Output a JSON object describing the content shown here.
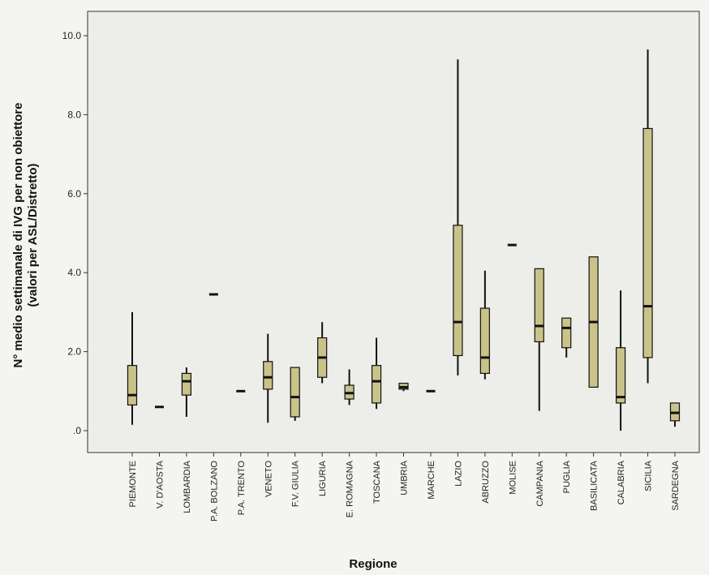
{
  "chart_data": {
    "type": "boxplot",
    "title": "",
    "xlabel": "Regione",
    "ylabel_line1": "N° medio settimanale di IVG per non obiettore",
    "ylabel_line2": "(valori per ASL/Distretto)",
    "ylim": [
      0,
      10
    ],
    "ytick_values": [
      0,
      2,
      4,
      6,
      8,
      10
    ],
    "ytick_labels": [
      ".0",
      "2.0",
      "4.0",
      "6.0",
      "8.0",
      "10.0"
    ],
    "grid": false,
    "legend": "none",
    "box_color": "#c9c38a",
    "categories": [
      "PIEMONTE",
      "V. D'AOSTA",
      "LOMBARDIA",
      "P.A. BOLZANO",
      "P.A. TRENTO",
      "VENETO",
      "F.V. GIULIA",
      "LIGURIA",
      "E. ROMAGNA",
      "TOSCANA",
      "UMBRIA",
      "MARCHE",
      "LAZIO",
      "ABRUZZO",
      "MOLISE",
      "CAMPANIA",
      "PUGLIA",
      "BASILICATA",
      "CALABRIA",
      "SICILIA",
      "SARDEGNA"
    ],
    "boxes": [
      {
        "min": 0.15,
        "q1": 0.65,
        "median": 0.9,
        "q3": 1.65,
        "max": 3.0
      },
      {
        "min": 0.6,
        "q1": 0.6,
        "median": 0.6,
        "q3": 0.6,
        "max": 0.6
      },
      {
        "min": 0.35,
        "q1": 0.9,
        "median": 1.25,
        "q3": 1.45,
        "max": 1.6
      },
      {
        "min": 3.45,
        "q1": 3.45,
        "median": 3.45,
        "q3": 3.45,
        "max": 3.45
      },
      {
        "min": 1.0,
        "q1": 1.0,
        "median": 1.0,
        "q3": 1.0,
        "max": 1.0
      },
      {
        "min": 0.2,
        "q1": 1.05,
        "median": 1.35,
        "q3": 1.75,
        "max": 2.45
      },
      {
        "min": 0.25,
        "q1": 0.35,
        "median": 0.85,
        "q3": 1.6,
        "max": 1.6
      },
      {
        "min": 1.2,
        "q1": 1.35,
        "median": 1.85,
        "q3": 2.35,
        "max": 2.75
      },
      {
        "min": 0.65,
        "q1": 0.8,
        "median": 0.95,
        "q3": 1.15,
        "max": 1.55
      },
      {
        "min": 0.55,
        "q1": 0.7,
        "median": 1.25,
        "q3": 1.65,
        "max": 2.35
      },
      {
        "min": 1.0,
        "q1": 1.05,
        "median": 1.1,
        "q3": 1.2,
        "max": 1.2
      },
      {
        "min": 1.0,
        "q1": 1.0,
        "median": 1.0,
        "q3": 1.0,
        "max": 1.0
      },
      {
        "min": 1.4,
        "q1": 1.9,
        "median": 2.75,
        "q3": 5.2,
        "max": 9.4
      },
      {
        "min": 1.3,
        "q1": 1.45,
        "median": 1.85,
        "q3": 3.1,
        "max": 4.05
      },
      {
        "min": 4.7,
        "q1": 4.7,
        "median": 4.7,
        "q3": 4.7,
        "max": 4.7
      },
      {
        "min": 0.5,
        "q1": 2.25,
        "median": 2.65,
        "q3": 4.1,
        "max": 4.1
      },
      {
        "min": 1.85,
        "q1": 2.1,
        "median": 2.6,
        "q3": 2.85,
        "max": 2.85
      },
      {
        "min": 1.1,
        "q1": 1.1,
        "median": 2.75,
        "q3": 4.4,
        "max": 4.4
      },
      {
        "min": 0.0,
        "q1": 0.7,
        "median": 0.85,
        "q3": 2.1,
        "max": 3.55
      },
      {
        "min": 1.2,
        "q1": 1.85,
        "median": 3.15,
        "q3": 7.65,
        "max": 9.65
      },
      {
        "min": 0.1,
        "q1": 0.25,
        "median": 0.45,
        "q3": 0.7,
        "max": 0.7
      }
    ]
  }
}
